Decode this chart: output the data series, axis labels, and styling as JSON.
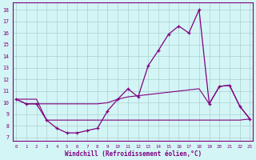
{
  "x": [
    0,
    1,
    2,
    3,
    4,
    5,
    6,
    7,
    8,
    9,
    10,
    11,
    12,
    13,
    14,
    15,
    16,
    17,
    18,
    19,
    20,
    21,
    22,
    23
  ],
  "y_main": [
    10.3,
    9.9,
    9.9,
    8.5,
    7.8,
    7.4,
    7.4,
    7.6,
    7.8,
    9.3,
    10.3,
    11.2,
    10.5,
    13.2,
    14.5,
    15.9,
    16.6,
    16.0,
    18.0,
    9.9,
    11.4,
    11.5,
    9.7,
    8.6
  ],
  "y_upper_smooth": [
    10.3,
    9.9,
    9.9,
    9.9,
    9.9,
    9.9,
    9.9,
    9.9,
    9.9,
    10.0,
    10.3,
    10.5,
    10.6,
    10.7,
    10.8,
    10.9,
    11.0,
    11.1,
    11.2,
    9.9,
    11.4,
    11.5,
    9.7,
    8.6
  ],
  "y_lower_flat": [
    10.3,
    10.3,
    10.3,
    8.5,
    8.5,
    8.5,
    8.5,
    8.5,
    8.5,
    8.5,
    8.5,
    8.5,
    8.5,
    8.5,
    8.5,
    8.5,
    8.5,
    8.5,
    8.5,
    8.5,
    8.5,
    8.5,
    8.5,
    8.6
  ],
  "color": "#800080",
  "bg_color": "#d4f5f5",
  "grid_color": "#aacfcf",
  "xlabel": "Windchill (Refroidissement éolien,°C)",
  "ylabel_ticks": [
    7,
    8,
    9,
    10,
    11,
    12,
    13,
    14,
    15,
    16,
    17,
    18
  ],
  "ylim": [
    6.7,
    18.6
  ],
  "xlim": [
    -0.3,
    23.3
  ],
  "xticks": [
    0,
    1,
    2,
    3,
    4,
    5,
    6,
    7,
    8,
    9,
    10,
    11,
    12,
    13,
    14,
    15,
    16,
    17,
    18,
    19,
    20,
    21,
    22,
    23
  ]
}
